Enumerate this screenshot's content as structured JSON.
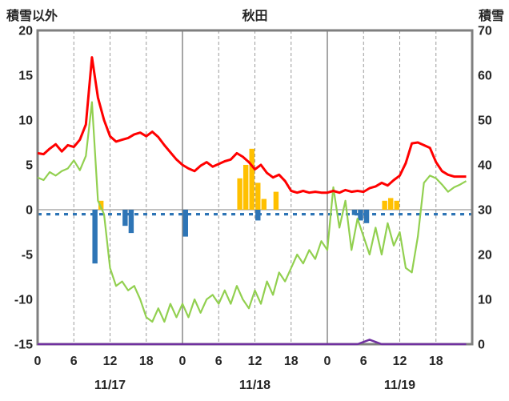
{
  "header": {
    "left": "積雪以外",
    "center": "秋田",
    "right": "積雪"
  },
  "chart_data": {
    "type": "line",
    "title": "秋田",
    "left_axis": {
      "label": "積雪以外",
      "ylim": [
        -15,
        20
      ],
      "ticks": [
        20,
        15,
        10,
        5,
        0,
        -5,
        -10,
        -15
      ]
    },
    "right_axis": {
      "label": "積雪",
      "ylim": [
        0,
        70
      ],
      "ticks": [
        70,
        60,
        50,
        40,
        30,
        20,
        10,
        0
      ]
    },
    "x_axis": {
      "hours_total": 72,
      "tick_hours": [
        0,
        6,
        12,
        18,
        24,
        30,
        36,
        42,
        48,
        54,
        60,
        66
      ],
      "tick_labels": [
        "0",
        "6",
        "12",
        "18",
        "0",
        "6",
        "12",
        "18",
        "0",
        "6",
        "12",
        "18"
      ],
      "date_labels": [
        "11/17",
        "11/18",
        "11/19"
      ],
      "grid": true
    },
    "colors": {
      "red_line": "#ff0000",
      "green_line": "#92d050",
      "orange_bars": "#ffc000",
      "blue_bars": "#2e75b6",
      "dashed_line": "#2e75b6",
      "purple_line": "#7030a0",
      "grid": "#808080",
      "grid_minor": "#9a9a9a",
      "frame": "#7f7f7f",
      "text": "#262626"
    },
    "series": {
      "red_line": {
        "axis": "left",
        "values": [
          6.3,
          6.2,
          6.8,
          7.3,
          6.5,
          7.2,
          7.0,
          7.8,
          9.5,
          17.0,
          12.5,
          10.0,
          8.2,
          7.6,
          7.8,
          8.0,
          8.4,
          8.6,
          8.2,
          8.7,
          8.1,
          7.2,
          6.4,
          5.6,
          5.0,
          4.6,
          4.3,
          4.9,
          5.3,
          4.8,
          5.1,
          5.4,
          5.6,
          6.3,
          5.9,
          5.3,
          4.5,
          5.0,
          4.1,
          3.6,
          3.9,
          3.2,
          2.1,
          1.9,
          2.1,
          1.9,
          2.0,
          1.9,
          1.9,
          2.1,
          1.9,
          2.2,
          2.0,
          2.1,
          2.0,
          2.4,
          2.6,
          3.0,
          2.7,
          3.3,
          3.8,
          5.2,
          7.4,
          7.5,
          7.2,
          6.9,
          5.3,
          4.3,
          3.9,
          3.7,
          3.7,
          3.7
        ]
      },
      "green_line": {
        "axis": "left",
        "values": [
          3.6,
          3.3,
          4.2,
          3.8,
          4.3,
          4.6,
          5.5,
          4.4,
          6.0,
          12.0,
          1.0,
          -0.5,
          -6.5,
          -8.5,
          -8.0,
          -9.0,
          -8.5,
          -10.0,
          -12.0,
          -12.5,
          -11.0,
          -12.5,
          -10.5,
          -12.0,
          -10.5,
          -12.0,
          -10.0,
          -11.5,
          -10.0,
          -9.5,
          -10.5,
          -9.0,
          -10.5,
          -8.5,
          -10.0,
          -11.0,
          -9.0,
          -10.5,
          -8.0,
          -9.5,
          -7.0,
          -8.0,
          -6.5,
          -5.0,
          -6.0,
          -4.5,
          -5.5,
          -3.5,
          -4.5,
          2.5,
          -2.0,
          1.0,
          -4.5,
          -1.0,
          -3.0,
          -5.0,
          -2.0,
          -5.0,
          -1.5,
          -4.0,
          -2.5,
          -6.5,
          -7.0,
          -3.0,
          3.0,
          3.8,
          3.5,
          2.8,
          2.0,
          2.5,
          2.8,
          3.2
        ]
      },
      "orange_bars": {
        "axis": "left",
        "values": [
          0,
          0,
          0,
          0,
          0,
          0,
          0,
          0,
          0,
          0,
          1,
          0,
          0,
          0,
          0,
          0,
          0,
          0,
          0,
          0,
          0,
          0,
          0,
          0,
          0,
          0,
          0,
          0,
          0,
          0,
          0,
          0,
          0,
          3.5,
          5,
          6.8,
          3,
          1.2,
          0,
          2,
          0,
          0,
          0,
          0,
          0,
          0,
          0,
          0,
          0,
          0,
          0,
          0,
          0,
          0,
          0,
          0,
          0,
          1,
          1.3,
          1,
          0,
          0,
          0,
          0,
          0,
          0,
          0,
          0,
          0,
          0,
          0,
          0
        ]
      },
      "blue_bars": {
        "axis": "left",
        "values": [
          0,
          0,
          0,
          0,
          0,
          0,
          0,
          0,
          0,
          -6,
          0,
          0,
          0,
          0,
          -1.8,
          -2.6,
          0,
          0,
          0,
          0,
          0,
          0,
          0,
          0,
          -3,
          0,
          0,
          0,
          0,
          0,
          0,
          0,
          0,
          0,
          0,
          0,
          -1.2,
          0,
          0,
          0,
          0,
          0,
          0,
          0,
          0,
          0,
          0,
          0,
          0,
          0,
          0,
          0,
          -0.6,
          -1.2,
          -1.5,
          0,
          0,
          0,
          0,
          0,
          0,
          0,
          0,
          0,
          0,
          0,
          0,
          0,
          0,
          0,
          0,
          0
        ]
      },
      "dashed_line": {
        "axis": "left",
        "value": -0.5
      },
      "purple_line": {
        "axis": "right",
        "values": [
          0,
          0,
          0,
          0,
          0,
          0,
          0,
          0,
          0,
          0,
          0,
          0,
          0,
          0,
          0,
          0,
          0,
          0,
          0,
          0,
          0,
          0,
          0,
          0,
          0,
          0,
          0,
          0,
          0,
          0,
          0,
          0,
          0,
          0,
          0,
          0,
          0,
          0,
          0,
          0,
          0,
          0,
          0,
          0,
          0,
          0,
          0,
          0,
          0,
          0,
          0,
          0,
          0,
          0,
          0.5,
          1,
          0.5,
          0,
          0,
          0,
          0,
          0,
          0,
          0,
          0,
          0,
          0,
          0,
          0,
          0,
          0,
          0
        ]
      }
    }
  }
}
